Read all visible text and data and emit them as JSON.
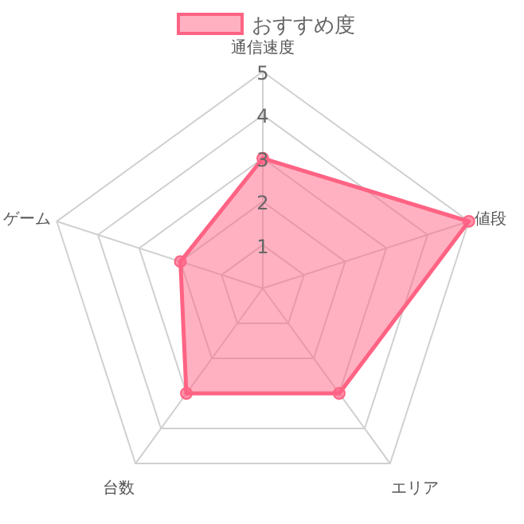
{
  "chart_data": {
    "type": "radar",
    "categories": [
      "通信速度",
      "値段",
      "エリア",
      "台数",
      "ゲーム"
    ],
    "series": [
      {
        "name": "おすすめ度",
        "color": "#ff6384",
        "values": [
          3,
          5,
          3,
          3,
          2
        ]
      }
    ],
    "ylim": [
      0,
      5
    ],
    "yticks": [
      1,
      2,
      3,
      4,
      5
    ],
    "grid": true,
    "legend": "top",
    "marker": "circle"
  }
}
